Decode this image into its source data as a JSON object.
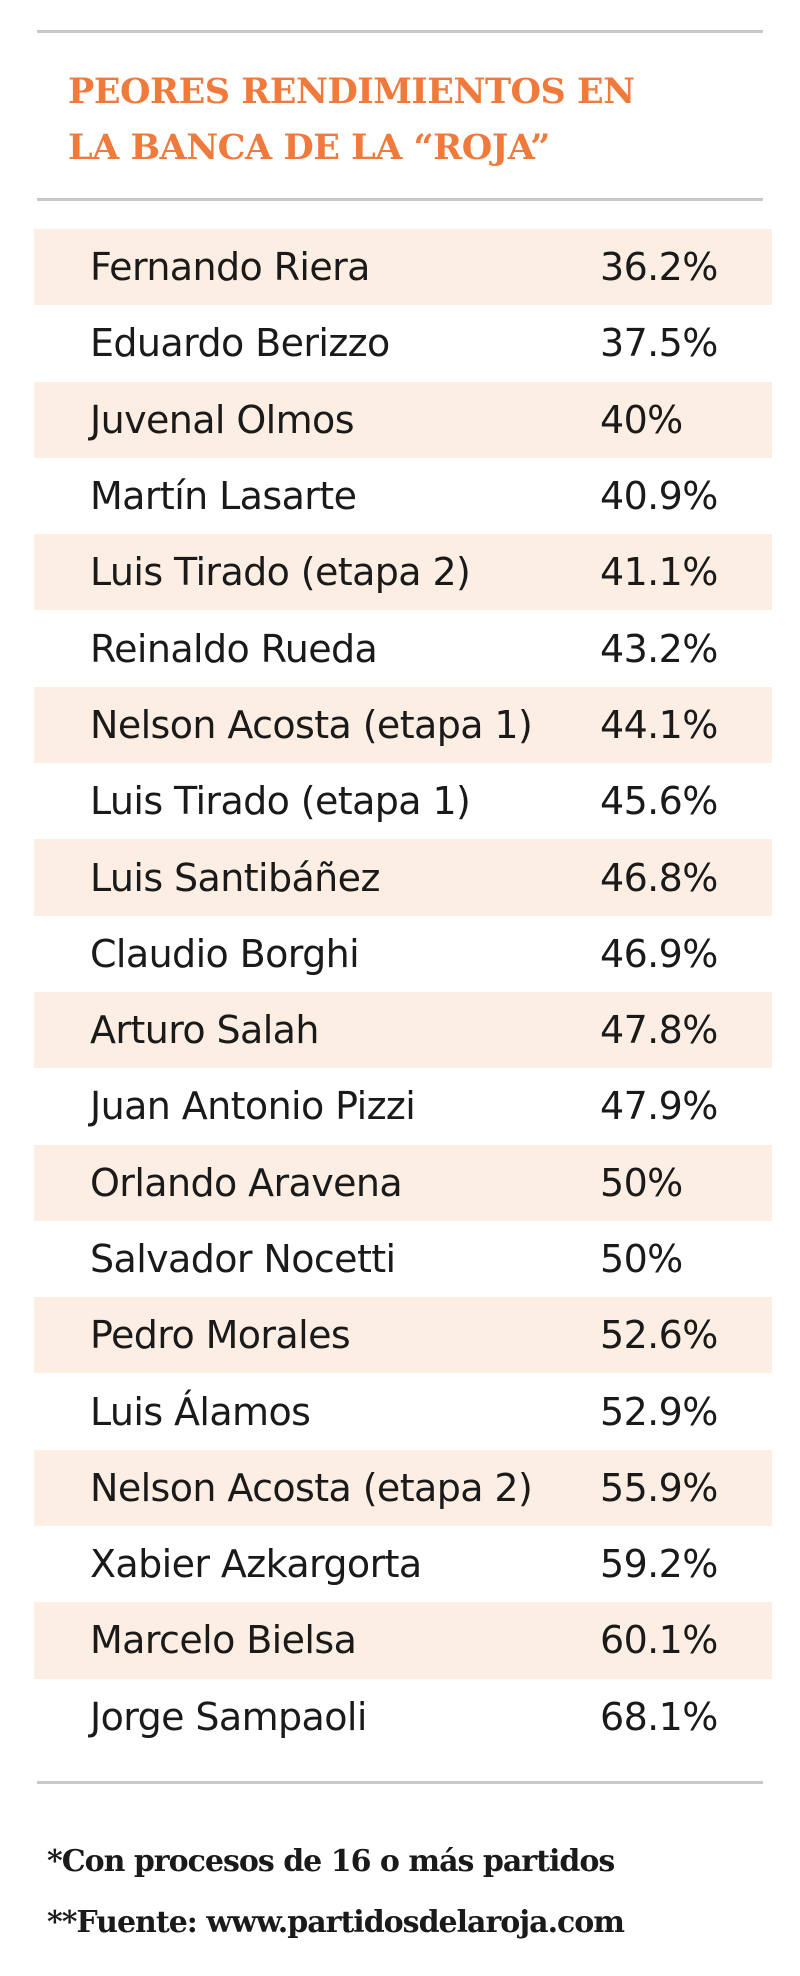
{
  "chart_data": {
    "type": "table",
    "title_lines": [
      "PEORES RENDIMIENTOS EN",
      "LA BANCA DE LA “ROJA”"
    ],
    "rows": [
      {
        "name": "Fernando Riera",
        "value": "36.2%"
      },
      {
        "name": "Eduardo Berizzo",
        "value": "37.5%"
      },
      {
        "name": "Juvenal Olmos",
        "value": "40%"
      },
      {
        "name": "Martín Lasarte",
        "value": "40.9%"
      },
      {
        "name": "Luis Tirado (etapa 2)",
        "value": "41.1%"
      },
      {
        "name": "Reinaldo Rueda",
        "value": "43.2%"
      },
      {
        "name": "Nelson Acosta (etapa 1)",
        "value": "44.1%"
      },
      {
        "name": "Luis Tirado (etapa 1)",
        "value": "45.6%"
      },
      {
        "name": "Luis Santibáñez",
        "value": "46.8%"
      },
      {
        "name": "Claudio Borghi",
        "value": "46.9%"
      },
      {
        "name": "Arturo Salah",
        "value": "47.8%"
      },
      {
        "name": "Juan Antonio Pizzi",
        "value": "47.9%"
      },
      {
        "name": "Orlando Aravena",
        "value": "50%"
      },
      {
        "name": "Salvador Nocetti",
        "value": "50%"
      },
      {
        "name": "Pedro Morales",
        "value": "52.6%"
      },
      {
        "name": "Luis Álamos",
        "value": "52.9%"
      },
      {
        "name": "Nelson Acosta (etapa 2)",
        "value": "55.9%"
      },
      {
        "name": "Xabier Azkargorta",
        "value": "59.2%"
      },
      {
        "name": "Marcelo Bielsa",
        "value": "60.1%"
      },
      {
        "name": "Jorge Sampaoli",
        "value": "68.1%"
      }
    ],
    "footnotes": [
      "*Con procesos de 16 o más partidos",
      "**Fuente: www.partidosdelaroja.com"
    ]
  },
  "colors": {
    "title": "#f07a3c",
    "row_shade": "#fdeee3",
    "rule": "#c8c8c8",
    "text": "#1a1a1a"
  }
}
